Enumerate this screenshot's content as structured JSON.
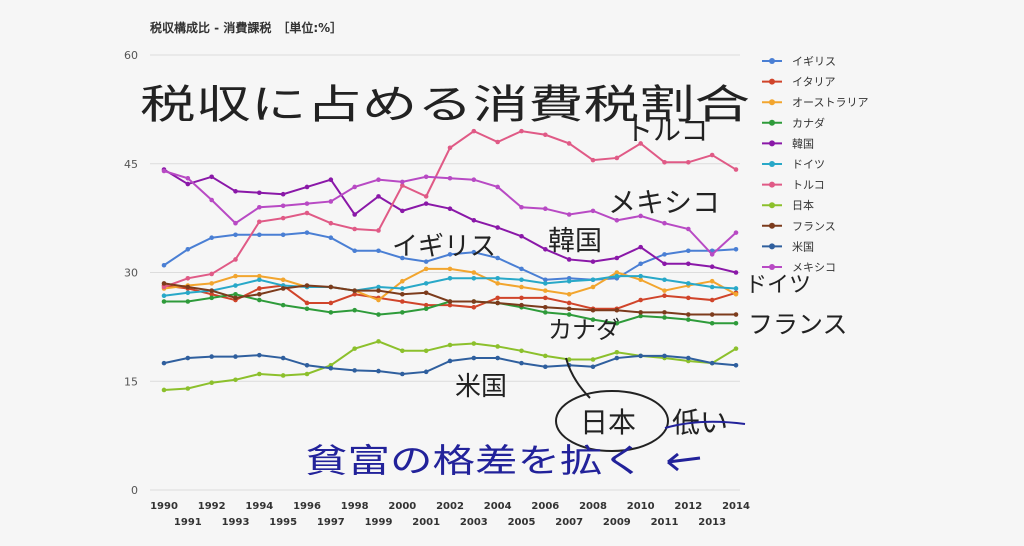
{
  "chart_data": {
    "type": "line",
    "title": "税収構成比 - 消費課税　［単位:%］",
    "xlabel": "",
    "ylabel": "",
    "ylim": [
      0,
      60
    ],
    "yticks": [
      0,
      15,
      30,
      45,
      60
    ],
    "grid": true,
    "legend_position": "right",
    "x": [
      1990,
      1991,
      1992,
      1993,
      1994,
      1995,
      1996,
      1997,
      1998,
      1999,
      2000,
      2001,
      2002,
      2003,
      2004,
      2005,
      2006,
      2007,
      2008,
      2009,
      2010,
      2011,
      2012,
      2013,
      2014
    ],
    "x_top_labels": [
      "1990",
      "1992",
      "1994",
      "1996",
      "1998",
      "2000",
      "2002",
      "2004",
      "2006",
      "2008",
      "2010",
      "2012",
      "2014"
    ],
    "x_bottom_labels": [
      "1991",
      "1993",
      "1995",
      "1997",
      "1999",
      "2001",
      "2003",
      "2005",
      "2007",
      "2009",
      "2011",
      "2013"
    ],
    "series": [
      {
        "name": "イギリス",
        "color": "#4a7fd4",
        "values": [
          31.0,
          33.2,
          34.8,
          35.2,
          35.2,
          35.2,
          35.5,
          34.8,
          33.0,
          33.0,
          32.0,
          31.5,
          32.5,
          32.8,
          32.0,
          30.5,
          29.0,
          29.2,
          29.0,
          29.2,
          31.2,
          32.5,
          33.0,
          33.0,
          33.2
        ]
      },
      {
        "name": "イタリア",
        "color": "#d0442a",
        "values": [
          28.2,
          27.8,
          27.0,
          26.2,
          27.8,
          28.2,
          25.8,
          25.8,
          27.0,
          26.5,
          26.0,
          25.5,
          25.5,
          25.2,
          26.5,
          26.5,
          26.5,
          25.8,
          25.0,
          25.0,
          26.2,
          26.8,
          26.5,
          26.2,
          27.2
        ]
      },
      {
        "name": "オーストラリア",
        "color": "#f2a52e",
        "values": [
          27.8,
          28.2,
          28.5,
          29.5,
          29.5,
          29.0,
          28.0,
          28.0,
          27.5,
          26.2,
          28.8,
          30.5,
          30.5,
          30.0,
          28.5,
          28.0,
          27.5,
          27.0,
          28.0,
          30.0,
          29.0,
          27.5,
          28.2,
          28.8,
          27.0
        ]
      },
      {
        "name": "カナダ",
        "color": "#2e9b3a",
        "values": [
          26.0,
          26.0,
          26.5,
          27.0,
          26.2,
          25.5,
          25.0,
          24.5,
          24.8,
          24.2,
          24.5,
          25.0,
          26.0,
          26.0,
          25.8,
          25.2,
          24.5,
          24.2,
          23.5,
          23.0,
          24.0,
          23.8,
          23.5,
          23.0,
          23.0
        ]
      },
      {
        "name": "韓国",
        "color": "#8a18a8",
        "values": [
          44.2,
          42.2,
          43.2,
          41.2,
          41.0,
          40.8,
          41.8,
          42.8,
          38.0,
          40.5,
          38.5,
          39.5,
          38.8,
          37.2,
          36.2,
          35.0,
          33.2,
          31.8,
          31.5,
          32.0,
          33.5,
          31.2,
          31.2,
          30.8,
          30.0
        ]
      },
      {
        "name": "ドイツ",
        "color": "#28a8c8",
        "values": [
          26.8,
          27.2,
          27.5,
          28.2,
          29.0,
          28.2,
          28.0,
          28.0,
          27.5,
          28.0,
          27.8,
          28.5,
          29.2,
          29.2,
          29.2,
          29.0,
          28.5,
          28.8,
          29.0,
          29.5,
          29.5,
          29.0,
          28.5,
          28.0,
          27.8
        ]
      },
      {
        "name": "トルコ",
        "color": "#e05a86",
        "values": [
          28.0,
          29.2,
          29.8,
          31.8,
          37.0,
          37.5,
          38.2,
          36.8,
          36.0,
          35.8,
          42.0,
          40.5,
          47.2,
          49.5,
          48.0,
          49.5,
          49.0,
          47.8,
          45.5,
          45.8,
          47.8,
          45.2,
          45.2,
          46.2,
          44.2
        ]
      },
      {
        "name": "日本",
        "color": "#8cc02c",
        "values": [
          13.8,
          14.0,
          14.8,
          15.2,
          16.0,
          15.8,
          16.0,
          17.2,
          19.5,
          20.5,
          19.2,
          19.2,
          20.0,
          20.2,
          19.8,
          19.2,
          18.5,
          18.0,
          18.0,
          19.0,
          18.5,
          18.2,
          17.8,
          17.5,
          19.5
        ]
      },
      {
        "name": "フランス",
        "color": "#7c3b1c",
        "values": [
          28.5,
          28.0,
          27.5,
          26.5,
          27.0,
          27.8,
          28.2,
          28.0,
          27.5,
          27.5,
          27.0,
          27.2,
          26.0,
          26.0,
          25.8,
          25.5,
          25.2,
          25.0,
          24.8,
          24.8,
          24.5,
          24.5,
          24.2,
          24.2,
          24.2
        ]
      },
      {
        "name": "米国",
        "color": "#2f5f9e",
        "values": [
          17.5,
          18.2,
          18.4,
          18.4,
          18.6,
          18.2,
          17.2,
          16.8,
          16.5,
          16.4,
          16.0,
          16.3,
          17.8,
          18.2,
          18.2,
          17.5,
          17.0,
          17.2,
          17.0,
          18.2,
          18.5,
          18.5,
          18.2,
          17.5,
          17.2
        ]
      },
      {
        "name": "メキシコ",
        "color": "#b84ac4",
        "values": [
          44.0,
          43.0,
          40.0,
          36.8,
          39.0,
          39.2,
          39.5,
          39.8,
          41.8,
          42.8,
          42.5,
          43.2,
          43.0,
          42.8,
          41.8,
          39.0,
          38.8,
          38.0,
          38.5,
          37.2,
          37.8,
          36.8,
          36.0,
          32.5,
          35.5
        ]
      }
    ]
  },
  "handwritten": {
    "title": "税収に占める消費税割合",
    "label_turkey": "トルコ",
    "label_mexico": "メキシコ",
    "label_uk": "イギリス",
    "label_korea": "韓国",
    "label_germany": "ドイツ",
    "label_france": "フランス",
    "label_canada": "カナダ",
    "label_usa": "米国",
    "label_japan": "日本",
    "label_low": "低い",
    "note": "貧富の格差を拡く"
  }
}
